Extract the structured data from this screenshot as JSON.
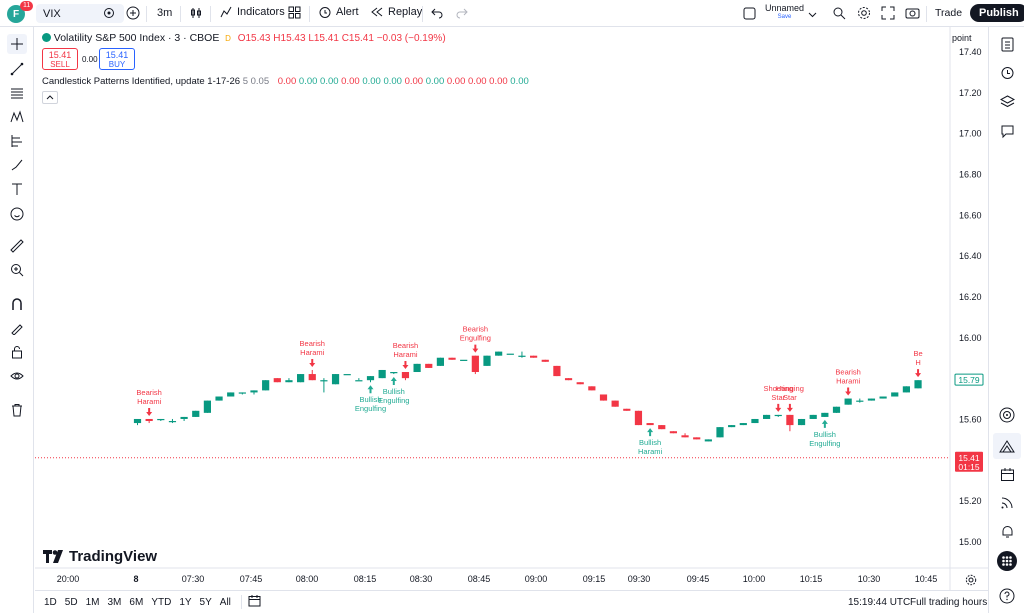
{
  "topbar": {
    "avatar_letter": "F",
    "notif_count": "11",
    "symbol": "VIX",
    "interval": "3m",
    "indicators_label": "Indicators",
    "alert_label": "Alert",
    "replay_label": "Replay",
    "layout_name": "Unnamed",
    "layout_status": "Save",
    "trade_label": "Trade",
    "publish_label": "Publish"
  },
  "legend": {
    "title": "Volatility S&P 500 Index · 3 · CBOE",
    "status_dot": "D",
    "open": "O15.43",
    "high": "H15.43",
    "low": "L15.41",
    "close": "C15.41",
    "change": "−0.03 (−0.19%)",
    "sell_price": "15.41",
    "sell_label": "SELL",
    "spread": "0.00",
    "buy_price": "15.41",
    "buy_label": "BUY",
    "indicator_name": "Candlestick Patterns Identified, update 1-17-26",
    "indicator_params": "5 0.05",
    "indicator_values": [
      "0.00",
      "0.00",
      "0.00",
      "0.00",
      "0.00",
      "0.00",
      "0.00",
      "0.00",
      "0.00",
      "0.00",
      "0.00",
      "0.00"
    ]
  },
  "scale_mode": "point",
  "price_axis": [
    "17.40",
    "17.20",
    "17.00",
    "16.80",
    "16.60",
    "16.40",
    "16.20",
    "16.00",
    "15.60",
    "15.20",
    "15.00"
  ],
  "last_price": {
    "value": "15.41",
    "countdown": "01:15"
  },
  "marker_price": "15.79",
  "time_axis": [
    "20:00",
    "8",
    "07:30",
    "07:45",
    "08:00",
    "08:15",
    "08:30",
    "08:45",
    "09:00",
    "09:15",
    "09:30",
    "09:45",
    "10:00",
    "10:15",
    "10:30",
    "10:45"
  ],
  "chart_data": {
    "type": "candlestick",
    "ylim": [
      14.87,
      17.52
    ],
    "candles": [
      {
        "o": 15.58,
        "h": 15.6,
        "l": 15.57,
        "c": 15.6
      },
      {
        "o": 15.6,
        "h": 15.6,
        "l": 15.58,
        "c": 15.59
      },
      {
        "o": 15.6,
        "h": 15.6,
        "l": 15.59,
        "c": 15.6
      },
      {
        "o": 15.59,
        "h": 15.6,
        "l": 15.58,
        "c": 15.59
      },
      {
        "o": 15.6,
        "h": 15.61,
        "l": 15.59,
        "c": 15.61
      },
      {
        "o": 15.61,
        "h": 15.64,
        "l": 15.61,
        "c": 15.64
      },
      {
        "o": 15.63,
        "h": 15.69,
        "l": 15.63,
        "c": 15.69
      },
      {
        "o": 15.69,
        "h": 15.71,
        "l": 15.69,
        "c": 15.71
      },
      {
        "o": 15.71,
        "h": 15.73,
        "l": 15.71,
        "c": 15.73
      },
      {
        "o": 15.73,
        "h": 15.73,
        "l": 15.72,
        "c": 15.73
      },
      {
        "o": 15.73,
        "h": 15.74,
        "l": 15.72,
        "c": 15.74
      },
      {
        "o": 15.74,
        "h": 15.79,
        "l": 15.74,
        "c": 15.79
      },
      {
        "o": 15.8,
        "h": 15.8,
        "l": 15.78,
        "c": 15.78
      },
      {
        "o": 15.78,
        "h": 15.8,
        "l": 15.78,
        "c": 15.79
      },
      {
        "o": 15.78,
        "h": 15.82,
        "l": 15.78,
        "c": 15.82
      },
      {
        "o": 15.82,
        "h": 15.84,
        "l": 15.79,
        "c": 15.79
      },
      {
        "o": 15.79,
        "h": 15.8,
        "l": 15.73,
        "c": 15.79
      },
      {
        "o": 15.77,
        "h": 15.82,
        "l": 15.77,
        "c": 15.82
      },
      {
        "o": 15.82,
        "h": 15.82,
        "l": 15.82,
        "c": 15.82
      },
      {
        "o": 15.79,
        "h": 15.8,
        "l": 15.79,
        "c": 15.79
      },
      {
        "o": 15.79,
        "h": 15.81,
        "l": 15.78,
        "c": 15.81
      },
      {
        "o": 15.8,
        "h": 15.84,
        "l": 15.8,
        "c": 15.84
      },
      {
        "o": 15.83,
        "h": 15.83,
        "l": 15.82,
        "c": 15.83
      },
      {
        "o": 15.83,
        "h": 15.83,
        "l": 15.79,
        "c": 15.8
      },
      {
        "o": 15.83,
        "h": 15.87,
        "l": 15.83,
        "c": 15.87
      },
      {
        "o": 15.87,
        "h": 15.87,
        "l": 15.85,
        "c": 15.85
      },
      {
        "o": 15.86,
        "h": 15.9,
        "l": 15.86,
        "c": 15.9
      },
      {
        "o": 15.9,
        "h": 15.9,
        "l": 15.89,
        "c": 15.89
      },
      {
        "o": 15.89,
        "h": 15.89,
        "l": 15.89,
        "c": 15.89
      },
      {
        "o": 15.91,
        "h": 15.91,
        "l": 15.82,
        "c": 15.83
      },
      {
        "o": 15.86,
        "h": 15.91,
        "l": 15.86,
        "c": 15.91
      },
      {
        "o": 15.91,
        "h": 15.93,
        "l": 15.91,
        "c": 15.93
      },
      {
        "o": 15.92,
        "h": 15.92,
        "l": 15.92,
        "c": 15.92
      },
      {
        "o": 15.91,
        "h": 15.93,
        "l": 15.9,
        "c": 15.91
      },
      {
        "o": 15.91,
        "h": 15.91,
        "l": 15.9,
        "c": 15.9
      },
      {
        "o": 15.89,
        "h": 15.89,
        "l": 15.88,
        "c": 15.88
      },
      {
        "o": 15.86,
        "h": 15.86,
        "l": 15.81,
        "c": 15.81
      },
      {
        "o": 15.8,
        "h": 15.8,
        "l": 15.79,
        "c": 15.79
      },
      {
        "o": 15.78,
        "h": 15.78,
        "l": 15.77,
        "c": 15.77
      },
      {
        "o": 15.76,
        "h": 15.76,
        "l": 15.74,
        "c": 15.74
      },
      {
        "o": 15.72,
        "h": 15.72,
        "l": 15.69,
        "c": 15.69
      },
      {
        "o": 15.69,
        "h": 15.69,
        "l": 15.66,
        "c": 15.66
      },
      {
        "o": 15.65,
        "h": 15.65,
        "l": 15.64,
        "c": 15.64
      },
      {
        "o": 15.64,
        "h": 15.64,
        "l": 15.57,
        "c": 15.57
      },
      {
        "o": 15.58,
        "h": 15.58,
        "l": 15.57,
        "c": 15.57
      },
      {
        "o": 15.57,
        "h": 15.57,
        "l": 15.55,
        "c": 15.55
      },
      {
        "o": 15.54,
        "h": 15.54,
        "l": 15.53,
        "c": 15.53
      },
      {
        "o": 15.52,
        "h": 15.53,
        "l": 15.51,
        "c": 15.51
      },
      {
        "o": 15.51,
        "h": 15.51,
        "l": 15.5,
        "c": 15.5
      },
      {
        "o": 15.49,
        "h": 15.5,
        "l": 15.49,
        "c": 15.5
      },
      {
        "o": 15.51,
        "h": 15.56,
        "l": 15.51,
        "c": 15.56
      },
      {
        "o": 15.56,
        "h": 15.57,
        "l": 15.56,
        "c": 15.57
      },
      {
        "o": 15.57,
        "h": 15.58,
        "l": 15.57,
        "c": 15.58
      },
      {
        "o": 15.58,
        "h": 15.6,
        "l": 15.58,
        "c": 15.6
      },
      {
        "o": 15.6,
        "h": 15.62,
        "l": 15.6,
        "c": 15.62
      },
      {
        "o": 15.62,
        "h": 15.62,
        "l": 15.61,
        "c": 15.62
      },
      {
        "o": 15.62,
        "h": 15.62,
        "l": 15.54,
        "c": 15.57
      },
      {
        "o": 15.57,
        "h": 15.6,
        "l": 15.57,
        "c": 15.6
      },
      {
        "o": 15.6,
        "h": 15.62,
        "l": 15.6,
        "c": 15.62
      },
      {
        "o": 15.61,
        "h": 15.63,
        "l": 15.61,
        "c": 15.63
      },
      {
        "o": 15.63,
        "h": 15.66,
        "l": 15.63,
        "c": 15.66
      },
      {
        "o": 15.67,
        "h": 15.7,
        "l": 15.67,
        "c": 15.7
      },
      {
        "o": 15.69,
        "h": 15.7,
        "l": 15.68,
        "c": 15.69
      },
      {
        "o": 15.69,
        "h": 15.7,
        "l": 15.69,
        "c": 15.7
      },
      {
        "o": 15.7,
        "h": 15.71,
        "l": 15.7,
        "c": 15.71
      },
      {
        "o": 15.71,
        "h": 15.73,
        "l": 15.71,
        "c": 15.73
      },
      {
        "o": 15.73,
        "h": 15.76,
        "l": 15.73,
        "c": 15.76
      },
      {
        "o": 15.75,
        "h": 15.79,
        "l": 15.75,
        "c": 15.79
      }
    ],
    "annotations": [
      {
        "i": 1,
        "text": [
          "Bearish",
          "Harami"
        ],
        "dir": "bear"
      },
      {
        "i": 15,
        "text": [
          "Bearish",
          "Harami"
        ],
        "dir": "bear"
      },
      {
        "i": 20,
        "text": [
          "Bullish",
          "Engulfing"
        ],
        "dir": "bull"
      },
      {
        "i": 22,
        "text": [
          "Bullish",
          "Engulfing"
        ],
        "dir": "bull"
      },
      {
        "i": 23,
        "text": [
          "Bearish",
          "Harami"
        ],
        "dir": "bear"
      },
      {
        "i": 29,
        "text": [
          "Bearish",
          "Engulfing"
        ],
        "dir": "bear"
      },
      {
        "i": 44,
        "text": [
          "Bullish",
          "Harami"
        ],
        "dir": "bull"
      },
      {
        "i": 55,
        "text": [
          "Shooting",
          "Star"
        ],
        "dir": "bear"
      },
      {
        "i": 56,
        "text": [
          "Hanging",
          "Star"
        ],
        "dir": "bear"
      },
      {
        "i": 59,
        "text": [
          "Bullish",
          "Engulfing"
        ],
        "dir": "bull"
      },
      {
        "i": 61,
        "text": [
          "Bearish",
          "Harami"
        ],
        "dir": "bear"
      },
      {
        "i": 67,
        "text": [
          "Be",
          "H"
        ],
        "dir": "bear"
      }
    ],
    "last_price": 15.41
  },
  "bottombar": {
    "ranges": [
      "1D",
      "5D",
      "1M",
      "3M",
      "6M",
      "YTD",
      "1Y",
      "5Y",
      "All"
    ],
    "clock": "15:19:44 UTC",
    "session": "Full trading hours"
  },
  "brand": "TradingView",
  "colors": {
    "up": "#089981",
    "down": "#f23645",
    "bull_text": "#22ab94",
    "bear_text": "#f23645"
  }
}
